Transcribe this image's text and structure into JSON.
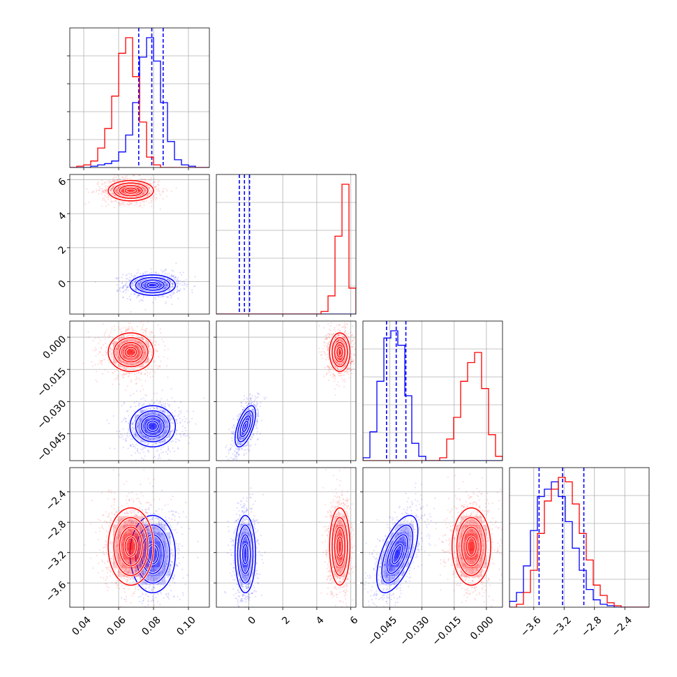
{
  "chart_data": {
    "type": "corner",
    "description_of_dims": "4 parameters, two posteriors (red and blue), lower-triangle corner plot",
    "colors": {
      "blue": "#0000ff",
      "red": "#ff0000"
    },
    "grid": true,
    "params": [
      {
        "range": [
          0.032,
          0.112
        ],
        "ticks": [
          0.04,
          0.06,
          0.08,
          0.1
        ],
        "tick_labels": [
          "0.04",
          "0.06",
          "0.08",
          "0.10"
        ]
      },
      {
        "range": [
          -1.9,
          6.3
        ],
        "ticks": [
          0,
          2,
          4,
          6
        ],
        "tick_labels": [
          "0",
          "2",
          "4",
          "6"
        ]
      },
      {
        "range": [
          -0.0575,
          0.0075
        ],
        "ticks": [
          -0.045,
          -0.03,
          -0.015,
          0.0
        ],
        "tick_labels": [
          "−0.045",
          "−0.030",
          "−0.015",
          "0.000"
        ]
      },
      {
        "range": [
          -3.92,
          -2.08
        ],
        "ticks": [
          -3.6,
          -3.2,
          -2.8,
          -2.4
        ],
        "tick_labels": [
          "−3.6",
          "−3.2",
          "−2.8",
          "−2.4"
        ]
      }
    ],
    "series": [
      {
        "color": "#0000ff",
        "means": [
          0.0795,
          -0.2,
          -0.0415,
          -3.22
        ],
        "sigmas": [
          0.0065,
          0.3,
          0.0048,
          0.255
        ],
        "correlations": {
          "0-1": 0.0,
          "0-2": 0.0,
          "0-3": 0.0,
          "1-2": 0.6,
          "1-3": 0.0,
          "2-3": 0.6
        },
        "quantile_lines": [
          [
            0.0715,
            0.079,
            0.0855
          ],
          [
            -0.55,
            -0.25,
            0.05
          ],
          [
            -0.0465,
            -0.042,
            -0.0375
          ],
          [
            -3.53,
            -3.22,
            -2.94
          ]
        ],
        "hist_bins": [
          [
            0.032,
            0.112,
            [
              0,
              0,
              0,
              1,
              2,
              3,
              5,
              12,
              25,
              50,
              85,
              100,
              82,
              50,
              20,
              6,
              2,
              1,
              0,
              0
            ]
          ],
          [
            -1.9,
            6.3,
            [
              0,
              0,
              0,
              0,
              0,
              0,
              0,
              0,
              0,
              0,
              0,
              0,
              0,
              0,
              0,
              0,
              0,
              0,
              0,
              0
            ]
          ],
          [
            -0.0575,
            0.0075,
            [
              2,
              20,
              55,
              85,
              90,
              80,
              45,
              12,
              3,
              0,
              0,
              0,
              0,
              0,
              0,
              0,
              0,
              0,
              0,
              0
            ]
          ],
          [
            -3.92,
            -2.08,
            [
              4,
              10,
              28,
              52,
              75,
              80,
              85,
              75,
              58,
              40,
              25,
              12,
              5,
              2,
              1,
              0,
              0,
              0,
              0,
              0
            ]
          ]
        ]
      },
      {
        "color": "#ff0000",
        "means": [
          0.067,
          5.35,
          -0.007,
          -3.12
        ],
        "sigmas": [
          0.0065,
          0.3,
          0.0045,
          0.255
        ],
        "correlations": {
          "0-1": 0.0,
          "0-2": 0.0,
          "0-3": 0.0,
          "1-2": 0.0,
          "1-3": 0.0,
          "2-3": 0.0
        },
        "quantile_lines": null,
        "hist_bins": [
          [
            0.032,
            0.112,
            [
              0,
              1,
              2,
              5,
              15,
              30,
              55,
              88,
              100,
              70,
              35,
              8,
              2,
              0,
              0,
              0,
              0,
              0,
              0,
              0
            ]
          ],
          [
            -1.9,
            6.3,
            [
              0,
              0,
              0,
              0,
              0,
              0,
              0,
              0,
              0,
              0,
              0,
              0,
              0,
              0,
              0,
              2,
              14,
              60,
              100,
              20
            ]
          ],
          [
            -0.0575,
            0.0075,
            [
              0,
              0,
              0,
              0,
              0,
              0,
              0,
              0,
              0,
              0,
              0,
              2,
              15,
              30,
              55,
              68,
              75,
              50,
              18,
              3
            ]
          ],
          [
            -3.92,
            -2.08,
            [
              0,
              2,
              10,
              25,
              50,
              72,
              80,
              88,
              85,
              70,
              50,
              32,
              15,
              8,
              3,
              1,
              0,
              0,
              0,
              0
            ]
          ]
        ]
      }
    ]
  }
}
